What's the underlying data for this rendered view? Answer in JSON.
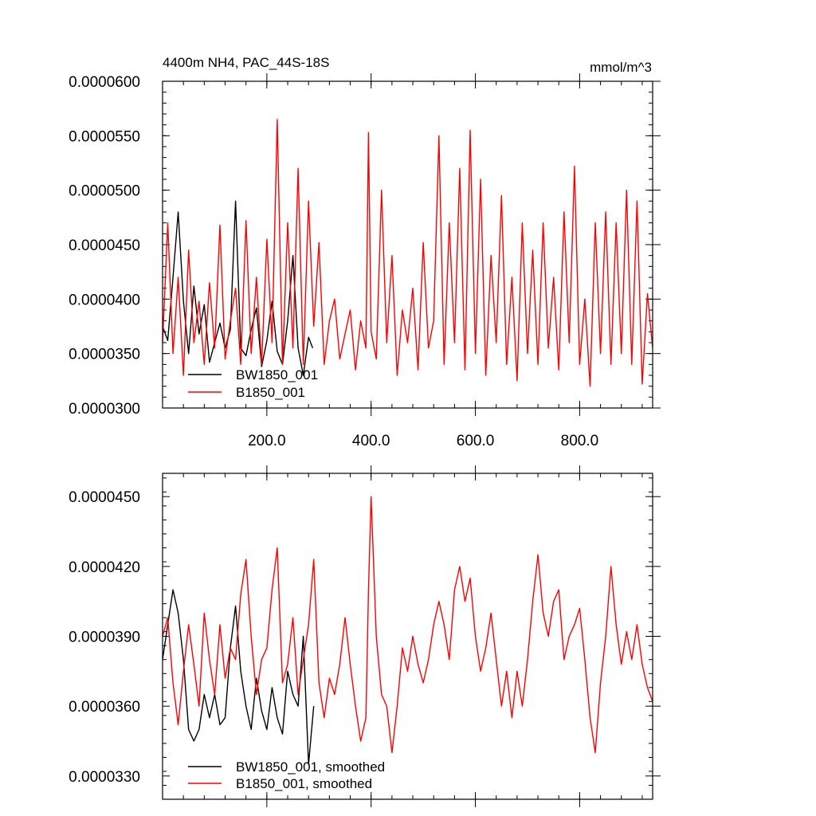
{
  "chart_data": [
    {
      "type": "line",
      "title": "4400m NH4, PAC_44S-18S",
      "units": "mmol/m^3",
      "xlim": [
        0,
        940
      ],
      "ylim": [
        3e-05,
        6e-05
      ],
      "x_ticks": [
        200,
        400,
        600,
        800
      ],
      "x_tick_labels": [
        "200.0",
        "400.0",
        "600.0",
        "800.0"
      ],
      "y_ticks": [
        3e-05,
        3.5e-05,
        4e-05,
        4.5e-05,
        5e-05,
        5.5e-05,
        6e-05
      ],
      "y_tick_labels": [
        "0.0000300",
        "0.0000350",
        "0.0000400",
        "0.0000450",
        "0.0000500",
        "0.0000550",
        "0.0000600"
      ],
      "legend_position": "bottom-left",
      "series": [
        {
          "name": "BW1850_001",
          "color": "#000000",
          "x": [
            0,
            10,
            20,
            30,
            40,
            50,
            60,
            70,
            80,
            90,
            100,
            110,
            120,
            130,
            140,
            150,
            160,
            170,
            180,
            190,
            200,
            210,
            220,
            230,
            240,
            250,
            260,
            270,
            280,
            288
          ],
          "values": [
            3.75e-05,
            3.62e-05,
            4.2e-05,
            4.8e-05,
            3.98e-05,
            3.5e-05,
            4.12e-05,
            3.68e-05,
            3.95e-05,
            3.42e-05,
            3.6e-05,
            3.78e-05,
            3.55e-05,
            3.72e-05,
            4.9e-05,
            3.55e-05,
            3.48e-05,
            3.72e-05,
            3.92e-05,
            3.38e-05,
            3.62e-05,
            3.98e-05,
            3.52e-05,
            3.4e-05,
            3.8e-05,
            4.4e-05,
            3.55e-05,
            3.3e-05,
            3.65e-05,
            3.55e-05
          ]
        },
        {
          "name": "B1850_001",
          "color": "#ff0000",
          "x": [
            0,
            10,
            20,
            30,
            40,
            50,
            60,
            70,
            80,
            90,
            100,
            110,
            120,
            130,
            140,
            150,
            160,
            170,
            180,
            190,
            200,
            210,
            220,
            230,
            240,
            250,
            260,
            270,
            280,
            290,
            300,
            310,
            320,
            330,
            340,
            350,
            360,
            370,
            380,
            390,
            395,
            400,
            410,
            420,
            430,
            440,
            450,
            460,
            470,
            480,
            490,
            500,
            510,
            520,
            530,
            540,
            550,
            560,
            570,
            580,
            590,
            600,
            610,
            620,
            630,
            640,
            650,
            660,
            670,
            680,
            690,
            700,
            710,
            720,
            730,
            740,
            750,
            760,
            770,
            780,
            790,
            800,
            810,
            820,
            830,
            840,
            850,
            860,
            870,
            880,
            890,
            900,
            910,
            920,
            930,
            940
          ],
          "values": [
            3.6e-05,
            4.7e-05,
            3.5e-05,
            4.2e-05,
            3.3e-05,
            4.45e-05,
            3.6e-05,
            3.98e-05,
            3.4e-05,
            4.15e-05,
            3.55e-05,
            4.68e-05,
            3.45e-05,
            3.8e-05,
            4.1e-05,
            3.4e-05,
            4.72e-05,
            3.5e-05,
            4.2e-05,
            3.4e-05,
            4.55e-05,
            3.6e-05,
            5.65e-05,
            3.4e-05,
            4.7e-05,
            3.55e-05,
            5.2e-05,
            3.4e-05,
            4.9e-05,
            3.75e-05,
            4.52e-05,
            3.4e-05,
            3.8e-05,
            4e-05,
            3.45e-05,
            3.68e-05,
            3.9e-05,
            3.35e-05,
            3.8e-05,
            3.55e-05,
            5.53e-05,
            3.7e-05,
            3.45e-05,
            5e-05,
            3.6e-05,
            4.4e-05,
            3.3e-05,
            3.9e-05,
            3.6e-05,
            4.1e-05,
            3.35e-05,
            4.52e-05,
            3.55e-05,
            3.8e-05,
            5.5e-05,
            3.4e-05,
            4.7e-05,
            3.6e-05,
            5.2e-05,
            3.35e-05,
            5.55e-05,
            3.5e-05,
            5.1e-05,
            3.3e-05,
            4.4e-05,
            3.6e-05,
            4.95e-05,
            3.4e-05,
            4.2e-05,
            3.25e-05,
            4.7e-05,
            3.5e-05,
            4.45e-05,
            3.4e-05,
            4.7e-05,
            3.55e-05,
            4.2e-05,
            3.35e-05,
            4.8e-05,
            3.6e-05,
            5.22e-05,
            3.4e-05,
            4e-05,
            3.2e-05,
            4.7e-05,
            3.5e-05,
            4.8e-05,
            3.4e-05,
            4.7e-05,
            3.5e-05,
            5e-05,
            3.4e-05,
            4.9e-05,
            3.22e-05,
            4.05e-05,
            3.55e-05
          ]
        }
      ]
    },
    {
      "type": "line",
      "xlim": [
        0,
        940
      ],
      "ylim": [
        3.2e-05,
        4.6e-05
      ],
      "y_ticks": [
        3.3e-05,
        3.6e-05,
        3.9e-05,
        4.2e-05,
        4.5e-05
      ],
      "y_tick_labels": [
        "0.0000330",
        "0.0000360",
        "0.0000390",
        "0.0000420",
        "0.0000450"
      ],
      "legend_position": "bottom-left",
      "series": [
        {
          "name": "BW1850_001, smoothed",
          "color": "#000000",
          "x": [
            0,
            10,
            20,
            30,
            40,
            50,
            60,
            70,
            80,
            90,
            100,
            110,
            120,
            130,
            140,
            150,
            160,
            170,
            180,
            190,
            200,
            210,
            220,
            230,
            240,
            250,
            260,
            270,
            280,
            290
          ],
          "values": [
            3.8e-05,
            3.95e-05,
            4.1e-05,
            4e-05,
            3.8e-05,
            3.5e-05,
            3.45e-05,
            3.5e-05,
            3.65e-05,
            3.55e-05,
            3.65e-05,
            3.52e-05,
            3.55e-05,
            3.85e-05,
            4.03e-05,
            3.75e-05,
            3.6e-05,
            3.5e-05,
            3.72e-05,
            3.58e-05,
            3.5e-05,
            3.68e-05,
            3.55e-05,
            3.48e-05,
            3.75e-05,
            3.65e-05,
            3.6e-05,
            3.9e-05,
            3.35e-05,
            3.6e-05
          ]
        },
        {
          "name": "B1850_001, smoothed",
          "color": "#ff0000",
          "x": [
            0,
            10,
            20,
            30,
            40,
            50,
            60,
            70,
            80,
            90,
            100,
            110,
            120,
            130,
            140,
            150,
            160,
            170,
            180,
            190,
            200,
            210,
            220,
            230,
            240,
            250,
            260,
            270,
            280,
            290,
            300,
            310,
            320,
            330,
            340,
            350,
            360,
            370,
            380,
            390,
            395,
            400,
            410,
            420,
            430,
            440,
            450,
            460,
            470,
            480,
            490,
            500,
            510,
            520,
            530,
            540,
            550,
            560,
            570,
            580,
            590,
            600,
            610,
            620,
            630,
            640,
            650,
            660,
            670,
            680,
            690,
            700,
            710,
            720,
            730,
            740,
            750,
            760,
            770,
            780,
            790,
            800,
            810,
            820,
            830,
            840,
            850,
            860,
            870,
            880,
            890,
            900,
            910,
            920,
            930,
            940
          ],
          "values": [
            3.9e-05,
            3.98e-05,
            3.7e-05,
            3.52e-05,
            3.75e-05,
            3.95e-05,
            3.78e-05,
            3.6e-05,
            4e-05,
            3.8e-05,
            3.65e-05,
            3.95e-05,
            3.72e-05,
            3.85e-05,
            3.8e-05,
            4.08e-05,
            4.23e-05,
            3.9e-05,
            3.65e-05,
            3.8e-05,
            3.85e-05,
            4.1e-05,
            4.28e-05,
            3.7e-05,
            3.78e-05,
            3.98e-05,
            3.65e-05,
            3.8e-05,
            3.95e-05,
            4.23e-05,
            3.7e-05,
            3.55e-05,
            3.72e-05,
            3.65e-05,
            3.78e-05,
            3.98e-05,
            3.78e-05,
            3.6e-05,
            3.45e-05,
            3.55e-05,
            4.1e-05,
            4.5e-05,
            3.9e-05,
            3.65e-05,
            3.6e-05,
            3.4e-05,
            3.6e-05,
            3.85e-05,
            3.75e-05,
            3.9e-05,
            3.78e-05,
            3.7e-05,
            3.8e-05,
            3.95e-05,
            4.05e-05,
            3.95e-05,
            3.8e-05,
            4.1e-05,
            4.2e-05,
            4.05e-05,
            4.15e-05,
            3.9e-05,
            3.75e-05,
            3.85e-05,
            4e-05,
            3.8e-05,
            3.6e-05,
            3.75e-05,
            3.55e-05,
            3.75e-05,
            3.6e-05,
            3.8e-05,
            4.05e-05,
            4.25e-05,
            4e-05,
            3.9e-05,
            4.05e-05,
            4.1e-05,
            3.8e-05,
            3.9e-05,
            3.95e-05,
            4.02e-05,
            3.8e-05,
            3.55e-05,
            3.4e-05,
            3.7e-05,
            3.9e-05,
            4.2e-05,
            3.95e-05,
            3.78e-05,
            3.92e-05,
            3.8e-05,
            3.95e-05,
            3.78e-05,
            3.68e-05,
            3.62e-05
          ]
        }
      ]
    }
  ]
}
